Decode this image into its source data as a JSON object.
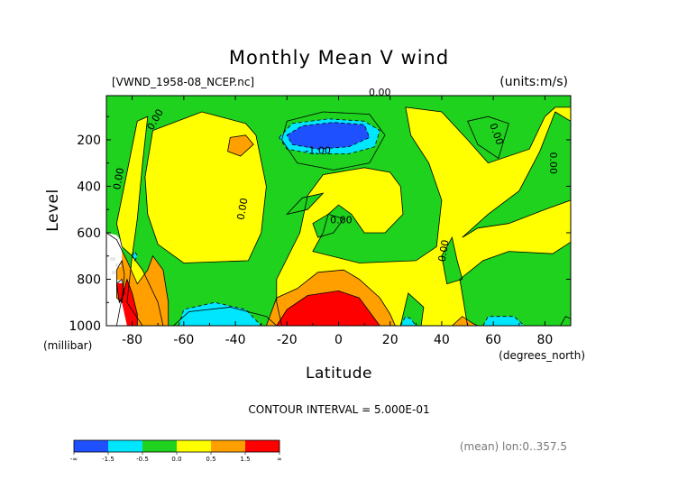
{
  "title": "Monthly Mean V wind",
  "file_label": "[VWND_1958-08_NCEP.nc]",
  "units_label": "(units:m/s)",
  "contour_interval_label": "CONTOUR INTERVAL = 5.000E-01",
  "footer_note": "(mean) lon:0..357.5",
  "colors": {
    "below_-1.5": "#1e50ff",
    "-1.5_to_-0.5": "#00e6ff",
    "-0.5_to_0.0": "#1ed21e",
    "0.0_to_0.5": "#ffff00",
    "0.5_to_1.5": "#ffa000",
    "above_1.5": "#ff0000",
    "contour_line": "#000000"
  },
  "chart_data": {
    "type": "heatmap",
    "subtype": "filled-contour",
    "title": "Monthly Mean V wind",
    "xlabel": "Latitude",
    "x_units": "(degrees_north)",
    "ylabel": "Level",
    "y_units": "(millibar)",
    "xlim": [
      -90,
      90
    ],
    "ylim": [
      1000,
      10
    ],
    "y_reversed": true,
    "x_ticks": [
      -80,
      -60,
      -40,
      -20,
      0,
      20,
      40,
      60,
      80
    ],
    "x_tick_labels": [
      "-80",
      "-60",
      "-40",
      "-20",
      "0",
      "20",
      "40",
      "60",
      "80"
    ],
    "y_ticks": [
      200,
      400,
      600,
      800,
      1000
    ],
    "y_tick_labels": [
      "200",
      "400",
      "600",
      "800",
      "1000"
    ],
    "contour_interval": 0.5,
    "contour_labels": [
      "0.00",
      "-1.00",
      "0.00",
      "0.00",
      "0.00",
      "0.00",
      "0.00",
      "0.00",
      "0.00"
    ],
    "colorbar": {
      "boundaries": [
        -1.5,
        -0.5,
        0.0,
        0.5,
        1.5
      ],
      "tick_labels": [
        "-∞",
        "-1.5",
        "-0.5",
        "0.0",
        "0.5",
        "1.5",
        "∞"
      ]
    },
    "regions": [
      {
        "kind": "background",
        "class": "-0.5_to_0.0"
      },
      {
        "kind": "zone",
        "class": "0.0_to_0.5",
        "points": [
          [
            -72,
            160
          ],
          [
            -53,
            80
          ],
          [
            -36,
            130
          ],
          [
            -32,
            180
          ],
          [
            -28,
            400
          ],
          [
            -30,
            600
          ],
          [
            -35,
            720
          ],
          [
            -60,
            730
          ],
          [
            -70,
            650
          ],
          [
            -74,
            520
          ],
          [
            -75,
            360
          ]
        ]
      },
      {
        "kind": "zone",
        "class": "0.0_to_0.5",
        "points": [
          [
            -24,
            800
          ],
          [
            -15,
            600
          ],
          [
            -12,
            440
          ],
          [
            -6,
            350
          ],
          [
            10,
            320
          ],
          [
            20,
            340
          ],
          [
            24,
            400
          ],
          [
            25,
            520
          ],
          [
            18,
            600
          ],
          [
            10,
            600
          ],
          [
            5,
            520
          ],
          [
            0,
            480
          ],
          [
            -4,
            520
          ],
          [
            -6,
            600
          ],
          [
            -10,
            680
          ],
          [
            8,
            730
          ],
          [
            30,
            720
          ],
          [
            38,
            660
          ],
          [
            40,
            460
          ],
          [
            35,
            300
          ],
          [
            28,
            180
          ],
          [
            26,
            60
          ],
          [
            40,
            80
          ],
          [
            50,
            200
          ],
          [
            58,
            300
          ],
          [
            74,
            240
          ],
          [
            80,
            100
          ],
          [
            84,
            60
          ],
          [
            90,
            60
          ],
          [
            90,
            640
          ],
          [
            83,
            690
          ],
          [
            66,
            680
          ],
          [
            56,
            720
          ],
          [
            47,
            800
          ],
          [
            50,
            1000
          ],
          [
            -22,
            1000
          ],
          [
            -24,
            900
          ]
        ]
      },
      {
        "kind": "zone",
        "class": "0.0_to_0.5",
        "points": [
          [
            -86,
            560
          ],
          [
            -82,
            340
          ],
          [
            -78,
            120
          ],
          [
            -74,
            100
          ],
          [
            -76,
            300
          ],
          [
            -78,
            540
          ],
          [
            -80,
            700
          ],
          [
            -84,
            660
          ]
        ]
      },
      {
        "kind": "zone",
        "class": "0.0_to_0.5",
        "points": [
          [
            -80,
            700
          ],
          [
            -76,
            760
          ],
          [
            -70,
            900
          ],
          [
            -68,
            1000
          ],
          [
            -76,
            1000
          ],
          [
            -82,
            900
          ]
        ]
      },
      {
        "kind": "zone",
        "class": "-0.5_to_0.0",
        "points": [
          [
            48,
            620
          ],
          [
            54,
            580
          ],
          [
            66,
            560
          ],
          [
            80,
            500
          ],
          [
            90,
            460
          ],
          [
            90,
            120
          ],
          [
            84,
            80
          ],
          [
            78,
            250
          ],
          [
            70,
            420
          ],
          [
            58,
            520
          ]
        ]
      },
      {
        "kind": "zone",
        "class": "-0.5_to_0.0",
        "points": [
          [
            50,
            120
          ],
          [
            58,
            100
          ],
          [
            66,
            130
          ],
          [
            62,
            280
          ],
          [
            54,
            220
          ]
        ]
      },
      {
        "kind": "zone",
        "class": "-0.5_to_0.0",
        "points": [
          [
            44,
            620
          ],
          [
            46,
            720
          ],
          [
            48,
            800
          ],
          [
            42,
            820
          ],
          [
            40,
            700
          ]
        ]
      },
      {
        "kind": "zone",
        "class": "-0.5_to_0.0",
        "points": [
          [
            27,
            860
          ],
          [
            33,
            920
          ],
          [
            32,
            1000
          ],
          [
            24,
            1000
          ]
        ]
      },
      {
        "kind": "zone",
        "class": "-0.5_to_0.0",
        "points": [
          [
            -10,
            560
          ],
          [
            -4,
            520
          ],
          [
            2,
            540
          ],
          [
            -2,
            600
          ],
          [
            -8,
            620
          ]
        ]
      },
      {
        "kind": "zone",
        "class": "-0.5_to_0.0",
        "points": [
          [
            -20,
            520
          ],
          [
            -14,
            450
          ],
          [
            -6,
            430
          ],
          [
            -12,
            500
          ]
        ]
      },
      {
        "kind": "zone",
        "class": "-0.5_to_0.0",
        "points": [
          [
            -58,
            940
          ],
          [
            -42,
            920
          ],
          [
            -28,
            960
          ],
          [
            -24,
            1000
          ],
          [
            -64,
            1000
          ]
        ]
      },
      {
        "kind": "zone",
        "class": "-0.5_to_0.0",
        "points": [
          [
            -20,
            120
          ],
          [
            -6,
            80
          ],
          [
            12,
            90
          ],
          [
            18,
            180
          ],
          [
            12,
            300
          ],
          [
            -2,
            330
          ],
          [
            -16,
            300
          ],
          [
            -22,
            200
          ]
        ]
      },
      {
        "kind": "zone",
        "class": "0.5_to_1.5",
        "points": [
          [
            -42,
            190
          ],
          [
            -36,
            180
          ],
          [
            -33,
            220
          ],
          [
            -38,
            270
          ],
          [
            -43,
            250
          ]
        ]
      },
      {
        "kind": "zone",
        "class": "0.5_to_1.5",
        "points": [
          [
            -90,
            600
          ],
          [
            -86,
            630
          ],
          [
            -82,
            720
          ],
          [
            -78,
            820
          ],
          [
            -74,
            760
          ],
          [
            -72,
            700
          ],
          [
            -68,
            760
          ],
          [
            -66,
            900
          ],
          [
            -66,
            1000
          ],
          [
            -90,
            1000
          ]
        ]
      },
      {
        "kind": "zone",
        "class": "0.5_to_1.5",
        "points": [
          [
            -28,
            1000
          ],
          [
            -24,
            880
          ],
          [
            -16,
            840
          ],
          [
            -8,
            770
          ],
          [
            2,
            760
          ],
          [
            8,
            800
          ],
          [
            16,
            880
          ],
          [
            20,
            950
          ],
          [
            22,
            1000
          ]
        ]
      },
      {
        "kind": "zone",
        "class": "0.5_to_1.5",
        "points": [
          [
            44,
            1000
          ],
          [
            48,
            960
          ],
          [
            52,
            990
          ],
          [
            54,
            1000
          ]
        ]
      },
      {
        "kind": "zone",
        "class": "above_1.5",
        "points": [
          [
            -24,
            1000
          ],
          [
            -20,
            930
          ],
          [
            -12,
            870
          ],
          [
            0,
            850
          ],
          [
            8,
            880
          ],
          [
            12,
            940
          ],
          [
            16,
            1000
          ]
        ]
      },
      {
        "kind": "zone",
        "class": "above_1.5",
        "points": [
          [
            -86,
            1000
          ],
          [
            -84,
            880
          ],
          [
            -82,
            800
          ],
          [
            -80,
            860
          ],
          [
            -78,
            950
          ],
          [
            -78,
            1000
          ]
        ]
      },
      {
        "kind": "zone",
        "class": "-1.5_to_-0.5",
        "points": [
          [
            -23,
            190
          ],
          [
            -18,
            130
          ],
          [
            -4,
            110
          ],
          [
            10,
            120
          ],
          [
            16,
            160
          ],
          [
            14,
            230
          ],
          [
            4,
            260
          ],
          [
            -10,
            260
          ],
          [
            -20,
            240
          ]
        ]
      },
      {
        "kind": "zone",
        "class": "below_-1.5",
        "points": [
          [
            -20,
            180
          ],
          [
            -14,
            140
          ],
          [
            -2,
            125
          ],
          [
            10,
            135
          ],
          [
            12,
            190
          ],
          [
            4,
            230
          ],
          [
            -8,
            240
          ],
          [
            -18,
            220
          ]
        ]
      },
      {
        "kind": "zone",
        "class": "-1.5_to_-0.5",
        "points": [
          [
            -62,
            1000
          ],
          [
            -60,
            930
          ],
          [
            -48,
            900
          ],
          [
            -36,
            930
          ],
          [
            -30,
            1000
          ]
        ]
      },
      {
        "kind": "zone",
        "class": "-1.5_to_-0.5",
        "points": [
          [
            24,
            1000
          ],
          [
            26,
            960
          ],
          [
            28,
            970
          ],
          [
            30,
            1000
          ]
        ]
      },
      {
        "kind": "zone",
        "class": "-1.5_to_-0.5",
        "points": [
          [
            56,
            1000
          ],
          [
            58,
            960
          ],
          [
            68,
            960
          ],
          [
            72,
            1000
          ]
        ]
      },
      {
        "kind": "zone",
        "class": "-1.5_to_-0.5",
        "points": [
          [
            -80,
            700
          ],
          [
            -79,
            680
          ],
          [
            -78,
            700
          ],
          [
            -79,
            720
          ]
        ]
      },
      {
        "kind": "zone",
        "class": "-0.5_to_0.0",
        "points": [
          [
            86,
            1000
          ],
          [
            88,
            960
          ],
          [
            90,
            970
          ],
          [
            90,
            1000
          ]
        ]
      },
      {
        "kind": "missing",
        "points": [
          [
            -90,
            600
          ],
          [
            -86,
            610
          ],
          [
            -84,
            640
          ],
          [
            -84,
            900
          ],
          [
            -82,
            1000
          ],
          [
            -90,
            1000
          ]
        ]
      },
      {
        "kind": "zone",
        "class": "0.5_to_1.5",
        "points": [
          [
            -86,
            760
          ],
          [
            -84,
            720
          ],
          [
            -83,
            780
          ],
          [
            -84,
            900
          ],
          [
            -86,
            880
          ]
        ]
      },
      {
        "kind": "zone",
        "class": "above_1.5",
        "points": [
          [
            -86,
            820
          ],
          [
            -84,
            800
          ],
          [
            -83,
            860
          ],
          [
            -85,
            900
          ]
        ]
      }
    ]
  }
}
